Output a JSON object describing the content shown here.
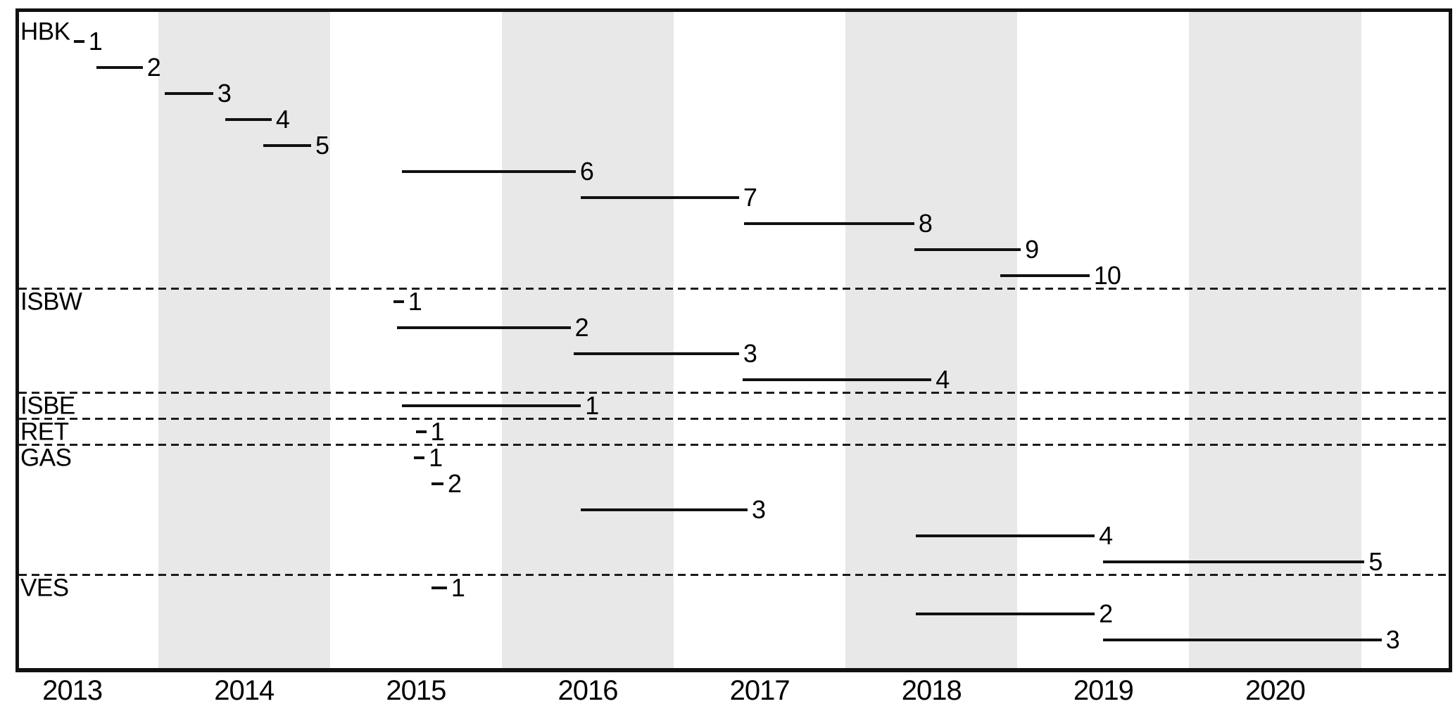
{
  "chart_data": {
    "type": "gantt",
    "title": "",
    "description": "Timeline of numbered measurement segments per station, 2013-2021",
    "x_axis": {
      "min": 2013.19,
      "max": 2021.51,
      "tick_labels": [
        "2013",
        "2014",
        "2015",
        "2016",
        "2017",
        "2018",
        "2019",
        "2020"
      ],
      "tick_centers": [
        2013.5,
        2014.5,
        2015.5,
        2016.5,
        2017.5,
        2018.5,
        2019.5,
        2020.5
      ],
      "grid": false,
      "legend": "none"
    },
    "shaded_years": [
      2014,
      2016,
      2018,
      2020
    ],
    "groups": [
      {
        "name": "HBK",
        "segments": [
          {
            "label": "1",
            "start": 2013.51,
            "end": 2013.57
          },
          {
            "label": "2",
            "start": 2013.64,
            "end": 2013.91
          },
          {
            "label": "3",
            "start": 2014.04,
            "end": 2014.32
          },
          {
            "label": "4",
            "start": 2014.39,
            "end": 2014.66
          },
          {
            "label": "5",
            "start": 2014.61,
            "end": 2014.89
          },
          {
            "label": "6",
            "start": 2015.42,
            "end": 2016.43
          },
          {
            "label": "7",
            "start": 2016.46,
            "end": 2017.38
          },
          {
            "label": "8",
            "start": 2017.41,
            "end": 2018.4
          },
          {
            "label": "9",
            "start": 2018.4,
            "end": 2019.02
          },
          {
            "label": "10",
            "start": 2018.9,
            "end": 2019.42
          }
        ]
      },
      {
        "name": "ISBW",
        "segments": [
          {
            "label": "1",
            "start": 2015.37,
            "end": 2015.43
          },
          {
            "label": "2",
            "start": 2015.39,
            "end": 2016.4
          },
          {
            "label": "3",
            "start": 2016.42,
            "end": 2017.38
          },
          {
            "label": "4",
            "start": 2017.4,
            "end": 2018.5
          }
        ]
      },
      {
        "name": "ISBE",
        "segments": [
          {
            "label": "1",
            "start": 2015.42,
            "end": 2016.46
          }
        ]
      },
      {
        "name": "RET",
        "segments": [
          {
            "label": "1",
            "start": 2015.5,
            "end": 2015.56
          }
        ]
      },
      {
        "name": "GAS",
        "segments": [
          {
            "label": "1",
            "start": 2015.49,
            "end": 2015.55
          },
          {
            "label": "2",
            "start": 2015.59,
            "end": 2015.66
          },
          {
            "label": "3",
            "start": 2016.46,
            "end": 2017.43
          },
          {
            "label": "4",
            "start": 2018.41,
            "end": 2019.45
          },
          {
            "label": "5",
            "start": 2019.5,
            "end": 2021.02
          }
        ]
      },
      {
        "name": "VES",
        "segments": [
          {
            "label": "1",
            "start": 2015.59,
            "end": 2015.68
          },
          {
            "label": "2",
            "start": 2018.41,
            "end": 2019.45
          },
          {
            "label": "3",
            "start": 2019.5,
            "end": 2021.12
          }
        ]
      }
    ]
  },
  "colors": {
    "background": "#ffffff",
    "band": "#e8e8e8",
    "line": "#111111",
    "separator": "#1c1c1c",
    "text": "#000000"
  }
}
